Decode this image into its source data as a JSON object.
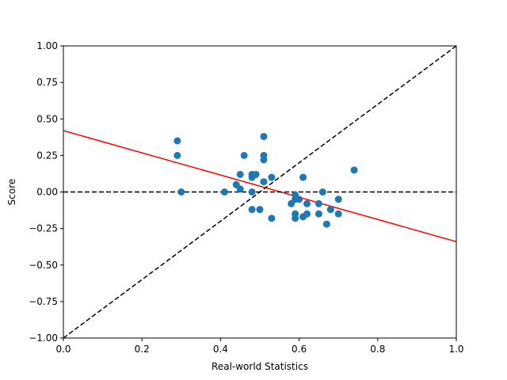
{
  "chart_data": {
    "type": "scatter",
    "title": "",
    "xlabel": "Real-world Statistics",
    "ylabel": "Score",
    "xlim": [
      0.0,
      1.0
    ],
    "ylim": [
      -1.0,
      1.0
    ],
    "xticks": [
      0.0,
      0.2,
      0.4,
      0.6,
      0.8,
      1.0
    ],
    "xtick_labels": [
      "0.0",
      "0.2",
      "0.4",
      "0.6",
      "0.8",
      "1.0"
    ],
    "yticks": [
      -1.0,
      -0.75,
      -0.5,
      -0.25,
      0.0,
      0.25,
      0.5,
      0.75,
      1.0
    ],
    "ytick_labels": [
      "−1.00",
      "−0.75",
      "−0.50",
      "−0.25",
      "0.00",
      "0.25",
      "0.50",
      "0.75",
      "1.00"
    ],
    "grid": false,
    "legend": "none",
    "colors": {
      "points": "#1f77b4",
      "fit_line": "#ff0000",
      "reference_lines": "#000000"
    },
    "series": [
      {
        "points": [
          [
            0.29,
            0.35
          ],
          [
            0.29,
            0.25
          ],
          [
            0.3,
            0.0
          ],
          [
            0.41,
            0.0
          ],
          [
            0.44,
            0.05
          ],
          [
            0.45,
            0.12
          ],
          [
            0.45,
            0.02
          ],
          [
            0.46,
            0.25
          ],
          [
            0.48,
            0.12
          ],
          [
            0.48,
            0.1
          ],
          [
            0.48,
            0.0
          ],
          [
            0.48,
            -0.12
          ],
          [
            0.49,
            0.12
          ],
          [
            0.5,
            -0.12
          ],
          [
            0.51,
            0.38
          ],
          [
            0.51,
            0.25
          ],
          [
            0.51,
            0.22
          ],
          [
            0.51,
            0.07
          ],
          [
            0.53,
            0.1
          ],
          [
            0.53,
            -0.18
          ],
          [
            0.58,
            -0.08
          ],
          [
            0.59,
            -0.02
          ],
          [
            0.59,
            -0.05
          ],
          [
            0.59,
            -0.15
          ],
          [
            0.59,
            -0.18
          ],
          [
            0.6,
            -0.05
          ],
          [
            0.61,
            0.1
          ],
          [
            0.61,
            -0.17
          ],
          [
            0.62,
            -0.08
          ],
          [
            0.62,
            -0.15
          ],
          [
            0.65,
            -0.08
          ],
          [
            0.65,
            -0.15
          ],
          [
            0.66,
            0.0
          ],
          [
            0.67,
            -0.22
          ],
          [
            0.68,
            -0.12
          ],
          [
            0.7,
            -0.05
          ],
          [
            0.7,
            -0.15
          ],
          [
            0.74,
            0.15
          ]
        ]
      }
    ],
    "lines": [
      {
        "kind": "regression",
        "x": [
          0.0,
          1.0
        ],
        "y": [
          0.42,
          -0.34
        ],
        "style": "solid"
      },
      {
        "kind": "horizontal-reference",
        "x": [
          0.0,
          1.0
        ],
        "y": [
          0.0,
          0.0
        ],
        "style": "dashed"
      },
      {
        "kind": "diagonal-reference",
        "x": [
          0.0,
          1.0
        ],
        "y": [
          -1.0,
          1.0
        ],
        "style": "dashed"
      }
    ]
  }
}
